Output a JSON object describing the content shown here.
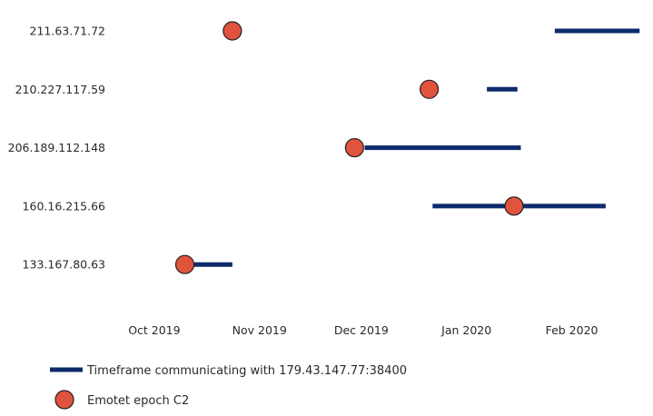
{
  "chart_data": {
    "type": "timeline",
    "colors": {
      "timeframe": "#0d2a6b",
      "epoch": "#e0533d",
      "epoch_stroke": "#222222"
    },
    "categories": [
      "211.63.71.72",
      "210.227.117.59",
      "206.189.112.148",
      "160.16.215.66",
      "133.167.80.63"
    ],
    "x_ticks": [
      {
        "date": "2019-10-01",
        "label": "Oct 2019"
      },
      {
        "date": "2019-11-01",
        "label": "Nov 2019"
      },
      {
        "date": "2019-12-01",
        "label": "Dec 2019"
      },
      {
        "date": "2020-01-01",
        "label": "Jan 2020"
      },
      {
        "date": "2020-02-01",
        "label": "Feb 2020"
      }
    ],
    "x_range": [
      "2019-09-23",
      "2020-02-22"
    ],
    "series": [
      {
        "name": "Timeframe communicating with 179.43.147.77:38400",
        "type": "range",
        "data": [
          {
            "category": "211.63.71.72",
            "start": "2020-01-27",
            "end": "2020-02-21"
          },
          {
            "category": "210.227.117.59",
            "start": "2020-01-07",
            "end": "2020-01-16"
          },
          {
            "category": "206.189.112.148",
            "start": "2019-12-02",
            "end": "2020-01-17"
          },
          {
            "category": "160.16.215.66",
            "start": "2019-12-22",
            "end": "2020-02-11"
          },
          {
            "category": "133.167.80.63",
            "start": "2019-10-08",
            "end": "2019-10-24"
          }
        ]
      },
      {
        "name": "Emotet epoch C2",
        "type": "point",
        "data": [
          {
            "category": "211.63.71.72",
            "date": "2019-10-24"
          },
          {
            "category": "210.227.117.59",
            "date": "2019-12-21"
          },
          {
            "category": "206.189.112.148",
            "date": "2019-11-29"
          },
          {
            "category": "160.16.215.66",
            "date": "2020-01-15"
          },
          {
            "category": "133.167.80.63",
            "date": "2019-10-10"
          }
        ]
      }
    ],
    "legend": [
      {
        "label": "Timeframe communicating with 179.43.147.77:38400",
        "marker": "line"
      },
      {
        "label": "Emotet epoch C2",
        "marker": "circle"
      }
    ],
    "legend_position": "bottom-left",
    "grid": false
  }
}
